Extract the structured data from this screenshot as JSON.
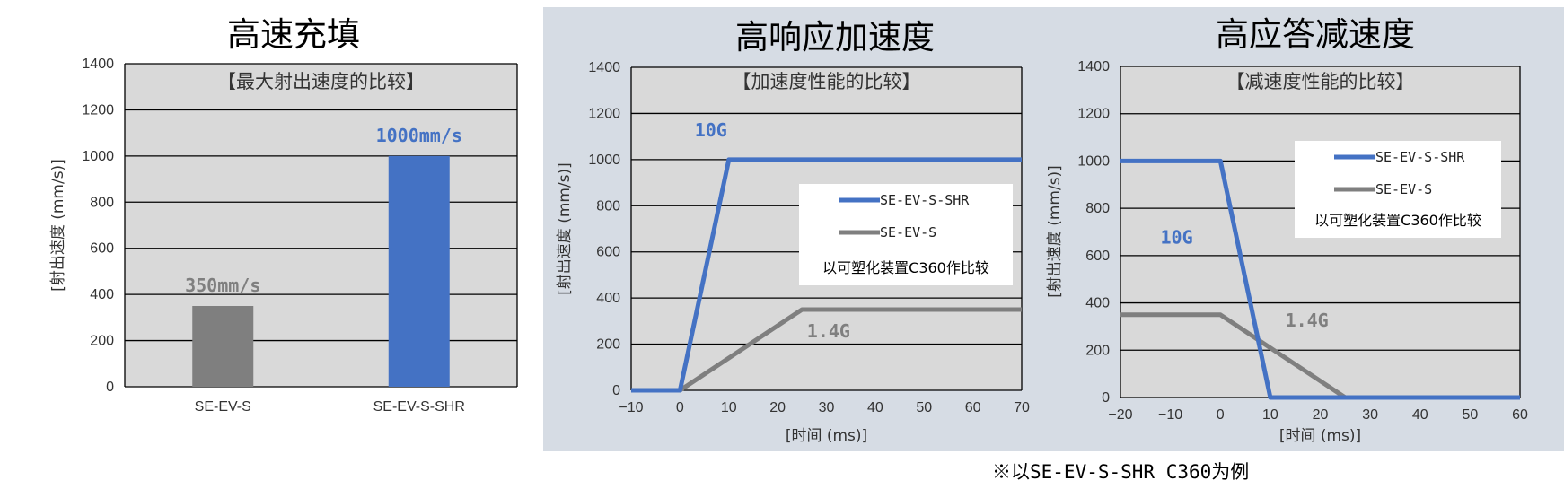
{
  "colors": {
    "shr": "#4472C4",
    "std": "#7F7F7F",
    "plot_bg": "#D9D9D9",
    "panel_bg": "#D6DCE4"
  },
  "footnote": "※以SE-EV-S-SHR C360为例",
  "chart_data": [
    {
      "type": "bar",
      "title": "高速充填",
      "inner_title": "【最大射出速度的比较】",
      "ylabel": "[射出速度 (mm/s)]",
      "xlabel": "",
      "ylim": [
        0,
        1400
      ],
      "yticks": [
        0,
        200,
        400,
        600,
        800,
        1000,
        1200,
        1400
      ],
      "grid": true,
      "categories": [
        "SE-EV-S",
        "SE-EV-S-SHR"
      ],
      "values": [
        350,
        1000
      ],
      "bar_colors": [
        "#7F7F7F",
        "#4472C4"
      ],
      "data_labels": [
        "350mm/s",
        "1000mm/s"
      ]
    },
    {
      "type": "line",
      "title": "高响应加速度",
      "inner_title": "【加速度性能的比较】",
      "ylabel": "[射出速度 (mm/s)]",
      "xlabel": "[时间 (ms)]",
      "xlim": [
        -10,
        70
      ],
      "xticks": [
        -10,
        0,
        10,
        20,
        30,
        40,
        50,
        60,
        70
      ],
      "ylim": [
        0,
        1400
      ],
      "yticks": [
        0,
        200,
        400,
        600,
        800,
        1000,
        1200,
        1400
      ],
      "grid": true,
      "legend_position": "center-right",
      "legend_note": "以可塑化装置C360作比较",
      "series": [
        {
          "name": "SE-EV-S-SHR",
          "color": "#4472C4",
          "points": [
            [
              -10,
              0
            ],
            [
              0,
              0
            ],
            [
              10,
              1000
            ],
            [
              70,
              1000
            ]
          ]
        },
        {
          "name": "SE-EV-S",
          "color": "#7F7F7F",
          "points": [
            [
              -10,
              0
            ],
            [
              0,
              0
            ],
            [
              25,
              350
            ],
            [
              70,
              350
            ]
          ]
        }
      ],
      "annotations": [
        {
          "text": "10G",
          "x": 3,
          "y": 1100,
          "color": "#4472C4"
        },
        {
          "text": "1.4G",
          "x": 26,
          "y": 230,
          "color": "#7F7F7F"
        }
      ]
    },
    {
      "type": "line",
      "title": "高应答减速度",
      "inner_title": "【减速度性能的比较】",
      "ylabel": "[射出速度 (mm/s)]",
      "xlabel": "[时间 (ms)]",
      "xlim": [
        -20,
        60
      ],
      "xticks": [
        -20,
        -10,
        0,
        10,
        20,
        30,
        40,
        50,
        60
      ],
      "ylim": [
        0,
        1400
      ],
      "yticks": [
        0,
        200,
        400,
        600,
        800,
        1000,
        1200,
        1400
      ],
      "grid": true,
      "legend_position": "top-right",
      "legend_note": "以可塑化装置C360作比较",
      "series": [
        {
          "name": "SE-EV-S-SHR",
          "color": "#4472C4",
          "points": [
            [
              -20,
              1000
            ],
            [
              0,
              1000
            ],
            [
              10,
              0
            ],
            [
              60,
              0
            ]
          ]
        },
        {
          "name": "SE-EV-S",
          "color": "#7F7F7F",
          "points": [
            [
              -20,
              350
            ],
            [
              0,
              350
            ],
            [
              20,
              70
            ],
            [
              25,
              0
            ],
            [
              60,
              0
            ]
          ]
        }
      ],
      "annotations": [
        {
          "text": "10G",
          "x": -12,
          "y": 650,
          "color": "#4472C4"
        },
        {
          "text": "1.4G",
          "x": 13,
          "y": 300,
          "color": "#7F7F7F"
        }
      ]
    }
  ]
}
